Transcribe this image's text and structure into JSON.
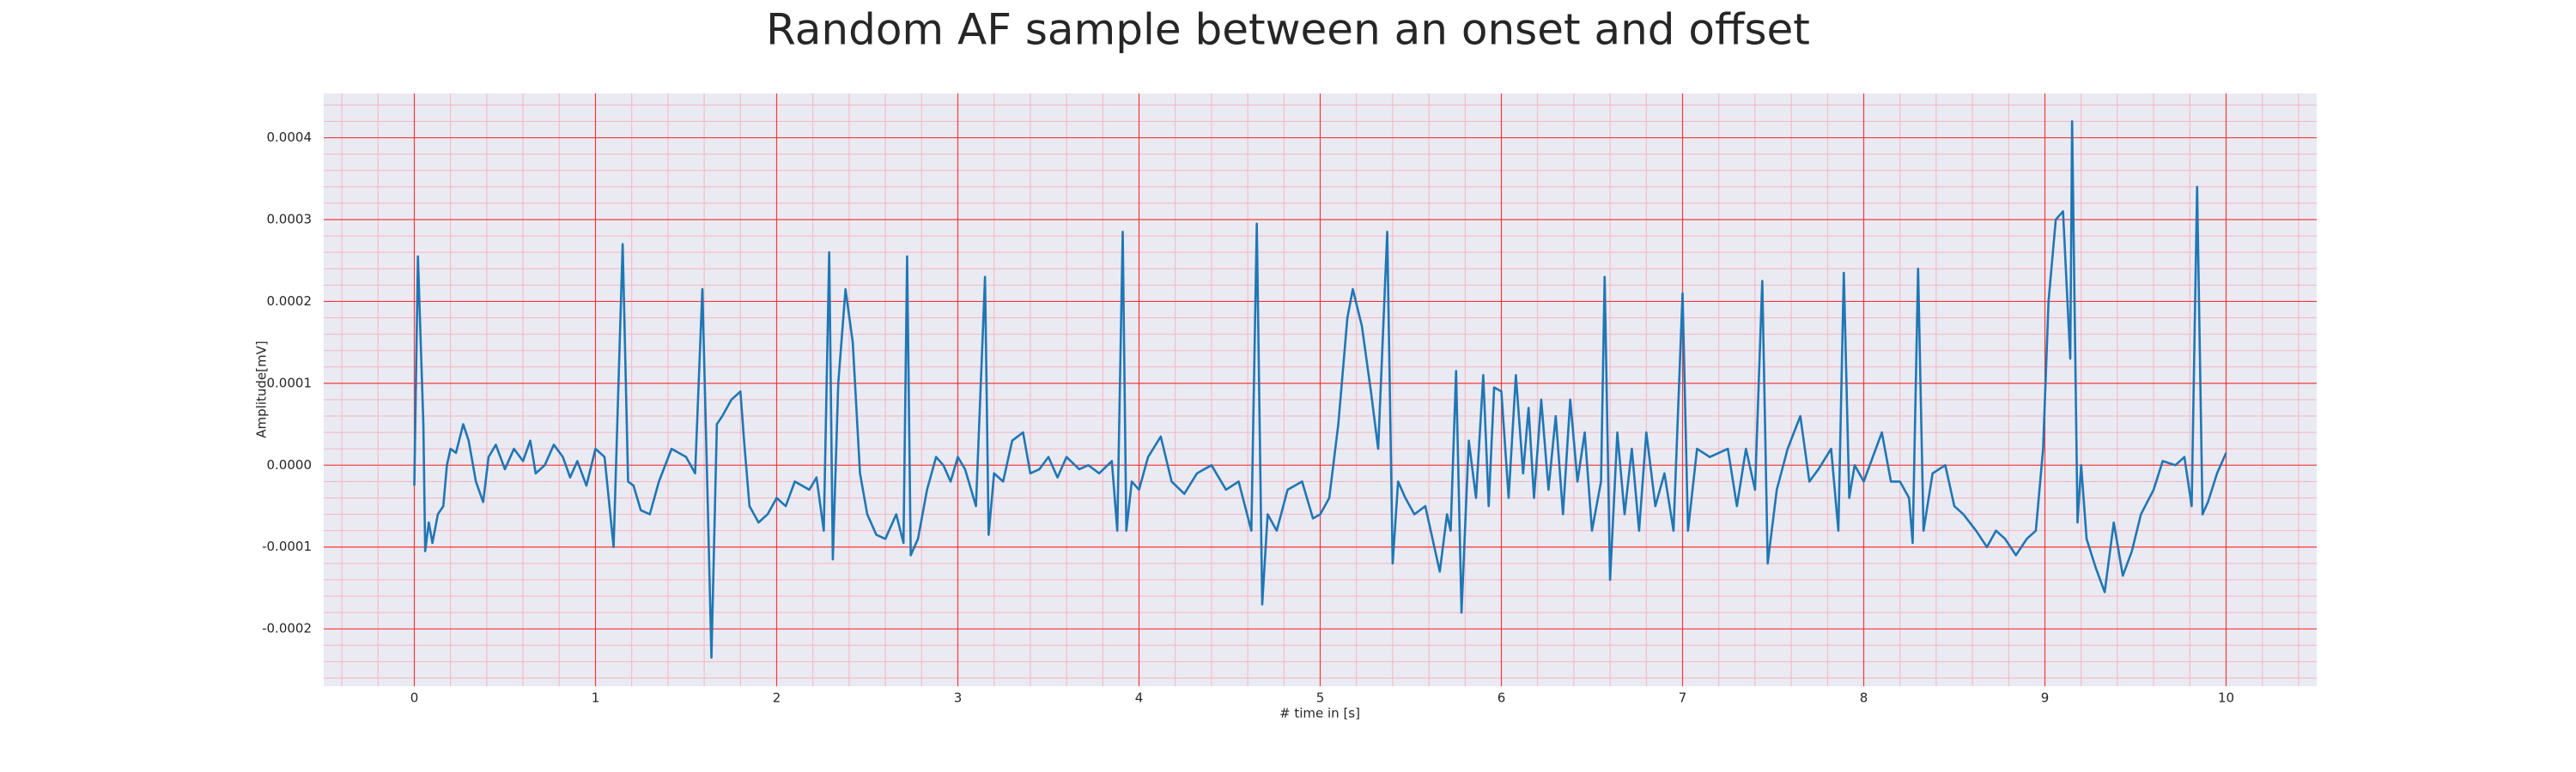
{
  "chart_data": {
    "type": "line",
    "title": "Random AF sample between an onset and offset",
    "xlabel": "# time in [s]",
    "ylabel": "Amplitude[mV]",
    "color": "#1f77b4",
    "grid": true,
    "minor_grid": true,
    "xlim": [
      -0.5,
      10.5
    ],
    "ylim": [
      -0.00027,
      0.000454
    ],
    "xticks": [
      0,
      1,
      2,
      3,
      4,
      5,
      6,
      7,
      8,
      9,
      10
    ],
    "yticks": [
      -0.0002,
      -0.0001,
      {
        "value": 0,
        "label": "0.0000"
      },
      0.0001,
      0.0002,
      0.0003,
      0.0004
    ],
    "x": [
      0,
      0.02,
      0.05,
      0.06,
      0.08,
      0.1,
      0.13,
      0.16,
      0.18,
      0.2,
      0.23,
      0.27,
      0.3,
      0.34,
      0.38,
      0.41,
      0.45,
      0.5,
      0.55,
      0.6,
      0.64,
      0.67,
      0.72,
      0.77,
      0.82,
      0.86,
      0.9,
      0.95,
      1,
      1.05,
      1.1,
      1.15,
      1.18,
      1.21,
      1.25,
      1.3,
      1.35,
      1.42,
      1.5,
      1.55,
      1.59,
      1.62,
      1.64,
      1.67,
      1.7,
      1.75,
      1.8,
      1.82,
      1.85,
      1.9,
      1.95,
      2,
      2.05,
      2.1,
      2.18,
      2.22,
      2.26,
      2.29,
      2.31,
      2.34,
      2.38,
      2.42,
      2.46,
      2.5,
      2.55,
      2.6,
      2.66,
      2.7,
      2.72,
      2.74,
      2.78,
      2.83,
      2.88,
      2.92,
      2.96,
      3,
      3.04,
      3.1,
      3.15,
      3.17,
      3.2,
      3.25,
      3.3,
      3.36,
      3.4,
      3.45,
      3.5,
      3.55,
      3.6,
      3.67,
      3.72,
      3.78,
      3.85,
      3.88,
      3.91,
      3.93,
      3.96,
      4,
      4.05,
      4.12,
      4.18,
      4.25,
      4.32,
      4.4,
      4.48,
      4.55,
      4.62,
      4.65,
      4.68,
      4.71,
      4.76,
      4.82,
      4.9,
      4.96,
      5,
      5.05,
      5.1,
      5.15,
      5.18,
      5.23,
      5.28,
      5.32,
      5.37,
      5.4,
      5.43,
      5.47,
      5.52,
      5.58,
      5.62,
      5.66,
      5.7,
      5.72,
      5.75,
      5.78,
      5.82,
      5.86,
      5.9,
      5.93,
      5.96,
      6,
      6.04,
      6.08,
      6.12,
      6.15,
      6.18,
      6.22,
      6.26,
      6.3,
      6.34,
      6.38,
      6.42,
      6.46,
      6.5,
      6.55,
      6.57,
      6.6,
      6.64,
      6.68,
      6.72,
      6.76,
      6.8,
      6.85,
      6.9,
      6.95,
      7,
      7.03,
      7.08,
      7.15,
      7.25,
      7.3,
      7.35,
      7.4,
      7.44,
      7.47,
      7.52,
      7.58,
      7.65,
      7.7,
      7.75,
      7.82,
      7.86,
      7.89,
      7.92,
      7.95,
      8,
      8.05,
      8.1,
      8.15,
      8.2,
      8.25,
      8.27,
      8.3,
      8.33,
      8.38,
      8.45,
      8.5,
      8.55,
      8.62,
      8.68,
      8.73,
      8.78,
      8.84,
      8.9,
      8.95,
      8.99,
      9.02,
      9.06,
      9.1,
      9.14,
      9.15,
      9.18,
      9.2,
      9.23,
      9.28,
      9.33,
      9.38,
      9.43,
      9.48,
      9.53,
      9.6,
      9.65,
      9.72,
      9.77,
      9.81,
      9.84,
      9.87,
      9.9,
      9.95,
      10
    ],
    "values": [
      -2.5e-05,
      0.000255,
      5e-05,
      -0.000105,
      -7e-05,
      -9.5e-05,
      -6e-05,
      -5e-05,
      0,
      2e-05,
      1.5e-05,
      5e-05,
      3e-05,
      -2e-05,
      -4.5e-05,
      1e-05,
      2.5e-05,
      -5e-06,
      2e-05,
      5e-06,
      3e-05,
      -1e-05,
      0,
      2.5e-05,
      1e-05,
      -1.5e-05,
      5e-06,
      -2.5e-05,
      2e-05,
      1e-05,
      -0.0001,
      0.00027,
      -2e-05,
      -2.5e-05,
      -5.5e-05,
      -6e-05,
      -2e-05,
      2e-05,
      1e-05,
      -1e-05,
      0.000215,
      -5e-05,
      -0.000235,
      5e-05,
      6e-05,
      8e-05,
      9e-05,
      3e-05,
      -5e-05,
      -7e-05,
      -6e-05,
      -4e-05,
      -5e-05,
      -2e-05,
      -3e-05,
      -1.5e-05,
      -8e-05,
      0.00026,
      -0.000115,
      0.0001,
      0.000215,
      0.00015,
      -1e-05,
      -6e-05,
      -8.5e-05,
      -9e-05,
      -6e-05,
      -9.5e-05,
      0.000255,
      -0.00011,
      -9e-05,
      -3e-05,
      1e-05,
      0,
      -2e-05,
      1e-05,
      -5e-06,
      -5e-05,
      0.00023,
      -8.5e-05,
      -1e-05,
      -2e-05,
      3e-05,
      4e-05,
      -1e-05,
      -5e-06,
      1e-05,
      -1.5e-05,
      1e-05,
      -5e-06,
      0,
      -1e-05,
      5e-06,
      -8e-05,
      0.000285,
      -8e-05,
      -2e-05,
      -3e-05,
      1e-05,
      3.5e-05,
      -2e-05,
      -3.5e-05,
      -1e-05,
      0,
      -3e-05,
      -2e-05,
      -8e-05,
      0.000295,
      -0.00017,
      -6e-05,
      -8e-05,
      -3e-05,
      -2e-05,
      -6.5e-05,
      -6e-05,
      -4e-05,
      5e-05,
      0.00018,
      0.000215,
      0.00017,
      9e-05,
      2e-05,
      0.000285,
      -0.00012,
      -2e-05,
      -4e-05,
      -6e-05,
      -5e-05,
      -9e-05,
      -0.00013,
      -6e-05,
      -8e-05,
      0.000115,
      -0.00018,
      3e-05,
      -4e-05,
      0.00011,
      -5e-05,
      9.5e-05,
      9e-05,
      -4e-05,
      0.00011,
      -1e-05,
      7e-05,
      -4e-05,
      8e-05,
      -3e-05,
      6e-05,
      -6e-05,
      8e-05,
      -2e-05,
      4e-05,
      -8e-05,
      -2e-05,
      0.00023,
      -0.00014,
      4e-05,
      -6e-05,
      2e-05,
      -8e-05,
      4e-05,
      -5e-05,
      -1e-05,
      -8e-05,
      0.00021,
      -8e-05,
      2e-05,
      1e-05,
      2e-05,
      -5e-05,
      2e-05,
      -3e-05,
      0.000225,
      -0.00012,
      -3e-05,
      2e-05,
      6e-05,
      -2e-05,
      -5e-06,
      2e-05,
      -8e-05,
      0.000235,
      -4e-05,
      0,
      -2e-05,
      1e-05,
      4e-05,
      -2e-05,
      -2e-05,
      -4e-05,
      -9.5e-05,
      0.00024,
      -8e-05,
      -1e-05,
      0,
      -5e-05,
      -6e-05,
      -8e-05,
      -0.0001,
      -8e-05,
      -9e-05,
      -0.00011,
      -9e-05,
      -8e-05,
      2e-05,
      0.0002,
      0.0003,
      0.00031,
      0.00013,
      0.00042,
      -7e-05,
      0,
      -9e-05,
      -0.000125,
      -0.000155,
      -7e-05,
      -0.000135,
      -0.000105,
      -6e-05,
      -3e-05,
      5e-06,
      0,
      1e-05,
      -5e-05,
      0.00034,
      -6e-05,
      -4.5e-05,
      -1e-05,
      1.5e-05
    ]
  }
}
